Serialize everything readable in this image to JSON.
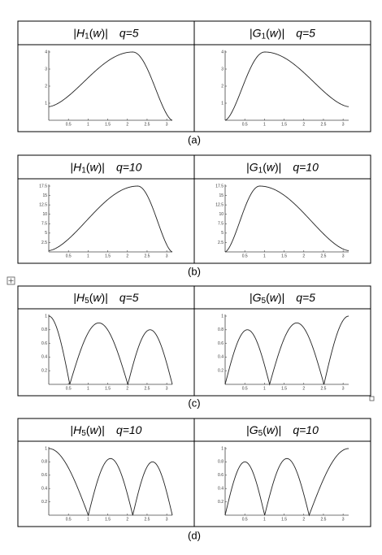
{
  "figures": [
    {
      "caption": "(a)",
      "panels": [
        {
          "title_parts": [
            "|",
            "H",
            "1",
            "(",
            "w",
            ")|"
          ],
          "param": "q=5"
        },
        {
          "title_parts": [
            "|",
            "G",
            "1",
            "(",
            "w",
            ")|"
          ],
          "param": "q=5"
        }
      ],
      "yticks": [
        "1",
        "2",
        "3",
        "4"
      ],
      "xticks": [
        "0.5",
        "1",
        "1.5",
        "2",
        "2.5",
        "3"
      ]
    },
    {
      "caption": "(b)",
      "panels": [
        {
          "title_parts": [
            "|",
            "H",
            "1",
            "(",
            "w",
            ")|"
          ],
          "param": "q=10"
        },
        {
          "title_parts": [
            "|",
            "G",
            "1",
            "(",
            "w",
            ")|"
          ],
          "param": "q=10"
        }
      ],
      "yticks": [
        "2.5",
        "5",
        "7.5",
        "10",
        "12.5",
        "15",
        "17.5"
      ],
      "xticks": [
        "0.5",
        "1",
        "1.5",
        "2",
        "2.5",
        "3"
      ]
    },
    {
      "caption": "(c)",
      "panels": [
        {
          "title_parts": [
            "|",
            "H",
            "5",
            "(",
            "w",
            ")|"
          ],
          "param": "q=5"
        },
        {
          "title_parts": [
            "|",
            "G",
            "5",
            "(",
            "w",
            ")|"
          ],
          "param": "q=5"
        }
      ],
      "yticks": [
        "0.2",
        "0.4",
        "0.6",
        "0.8",
        "1"
      ],
      "xticks": [
        "0.5",
        "1",
        "1.5",
        "2",
        "2.5",
        "3"
      ]
    },
    {
      "caption": "(d)",
      "panels": [
        {
          "title_parts": [
            "|",
            "H",
            "5",
            "(",
            "w",
            ")|"
          ],
          "param": "q=10"
        },
        {
          "title_parts": [
            "|",
            "G",
            "5",
            "(",
            "w",
            ")|"
          ],
          "param": "q=10"
        }
      ],
      "yticks": [
        "0.2",
        "0.4",
        "0.6",
        "0.8",
        "1"
      ],
      "xticks": [
        "0.5",
        "1",
        "1.5",
        "2",
        "2.5",
        "3"
      ]
    }
  ]
}
